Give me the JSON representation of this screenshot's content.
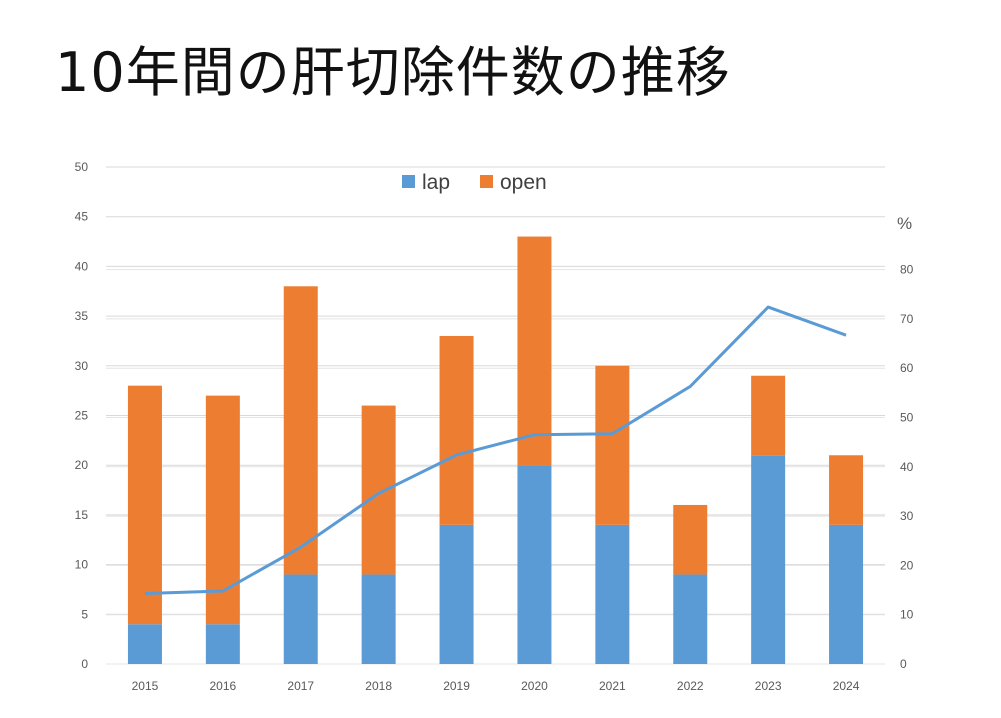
{
  "title": "10年間の肝切除件数の推移",
  "chart_data": {
    "type": "bar",
    "stacked": true,
    "categories": [
      "2015",
      "2016",
      "2017",
      "2018",
      "2019",
      "2020",
      "2021",
      "2022",
      "2023",
      "2024"
    ],
    "series": [
      {
        "name": "lap",
        "color": "#5B9BD5",
        "values": [
          4,
          4,
          9,
          9,
          14,
          20,
          14,
          9,
          21,
          14
        ]
      },
      {
        "name": "open",
        "color": "#ED7D31",
        "values": [
          24,
          23,
          29,
          17,
          19,
          23,
          16,
          7,
          8,
          7
        ]
      }
    ],
    "line": {
      "color": "#5B9BD5",
      "axis": "right",
      "values": [
        14.3,
        14.8,
        23.7,
        34.6,
        42.4,
        46.5,
        46.7,
        56.3,
        72.4,
        66.7
      ]
    },
    "ylim": [
      0,
      50
    ],
    "yticks": [
      0,
      5,
      10,
      15,
      20,
      25,
      30,
      35,
      40,
      45,
      50
    ],
    "y2lim": [
      0,
      90
    ],
    "y2ticks": [
      0,
      10,
      20,
      30,
      40,
      50,
      60,
      70,
      80
    ],
    "y2label": "%",
    "grid": true,
    "legend": "top-center"
  }
}
